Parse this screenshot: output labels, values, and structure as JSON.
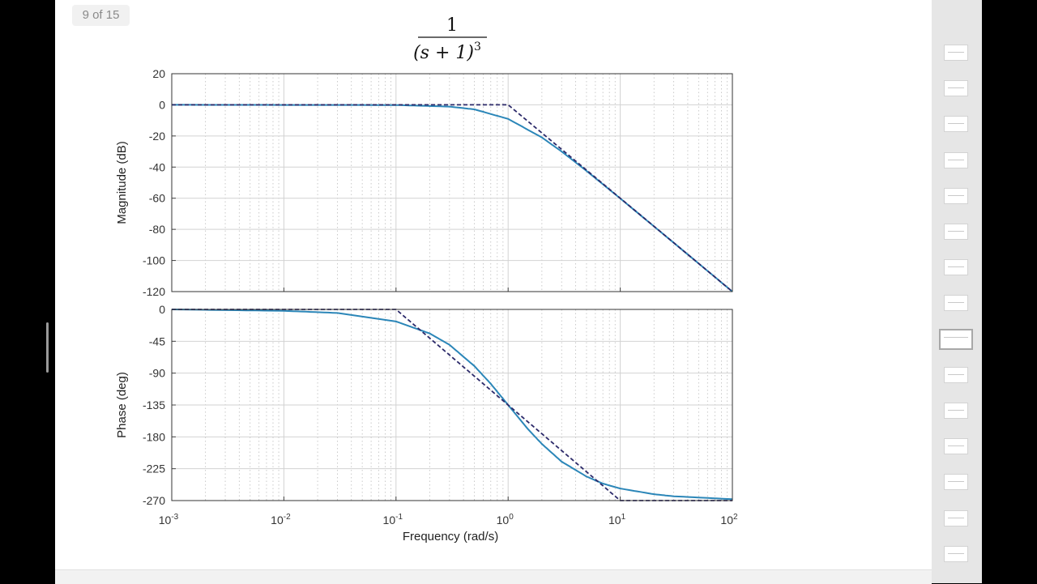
{
  "viewer": {
    "page_indicator": "9 of 15",
    "thumbnail_count": 15,
    "active_thumbnail": 9
  },
  "chart_data": {
    "type": "line",
    "title": "1/(s+1)^3",
    "title_parts": {
      "numerator": "1",
      "denominator": "(s + 1)",
      "exponent": "3"
    },
    "xlabel": "Frequency  (rad/s)",
    "xscale": "log",
    "xlim": [
      0.001,
      100
    ],
    "x_tick_labels": [
      {
        "base": "10",
        "exp": "-3"
      },
      {
        "base": "10",
        "exp": "-2"
      },
      {
        "base": "10",
        "exp": "-1"
      },
      {
        "base": "10",
        "exp": "0"
      },
      {
        "base": "10",
        "exp": "1"
      },
      {
        "base": "10",
        "exp": "2"
      }
    ],
    "grid": true,
    "colors": {
      "exact": "#2b86b8",
      "asymptote": "#2c2a6a"
    },
    "panels": [
      {
        "id": "magnitude",
        "ylabel": "Magnitude (dB)",
        "ylim": [
          -120,
          20
        ],
        "yticks": [
          20,
          0,
          -20,
          -40,
          -60,
          -80,
          -100,
          -120
        ],
        "series": [
          {
            "style": "solid",
            "x": [
              0.001,
              0.1,
              0.3,
              0.5,
              1,
              2,
              3,
              5,
              10,
              30,
              100
            ],
            "y": [
              0,
              -0.13,
              -1.14,
              -2.9,
              -9.03,
              -20.97,
              -30,
              -42.45,
              -60.13,
              -88.64,
              -120
            ]
          },
          {
            "style": "dashed",
            "x": [
              0.001,
              1,
              100
            ],
            "y": [
              0,
              0,
              -120
            ]
          }
        ]
      },
      {
        "id": "phase",
        "ylabel": "Phase (deg)",
        "ylim": [
          -270,
          0
        ],
        "yticks": [
          0,
          -45,
          -90,
          -135,
          -180,
          -225,
          -270
        ],
        "series": [
          {
            "style": "solid",
            "x": [
              0.001,
              0.01,
              0.03,
              0.1,
              0.2,
              0.3,
              0.5,
              0.7,
              1,
              1.5,
              2,
              3,
              5,
              7,
              10,
              20,
              30,
              100
            ],
            "y": [
              0,
              -2,
              -5,
              -17,
              -34,
              -50,
              -80,
              -105,
              -135,
              -169,
              -190,
              -215,
              -236,
              -246,
              -253,
              -261,
              -264,
              -268
            ]
          },
          {
            "style": "dashed",
            "x": [
              0.001,
              0.1,
              10,
              100
            ],
            "y": [
              0,
              0,
              -270,
              -270
            ]
          }
        ]
      }
    ]
  }
}
